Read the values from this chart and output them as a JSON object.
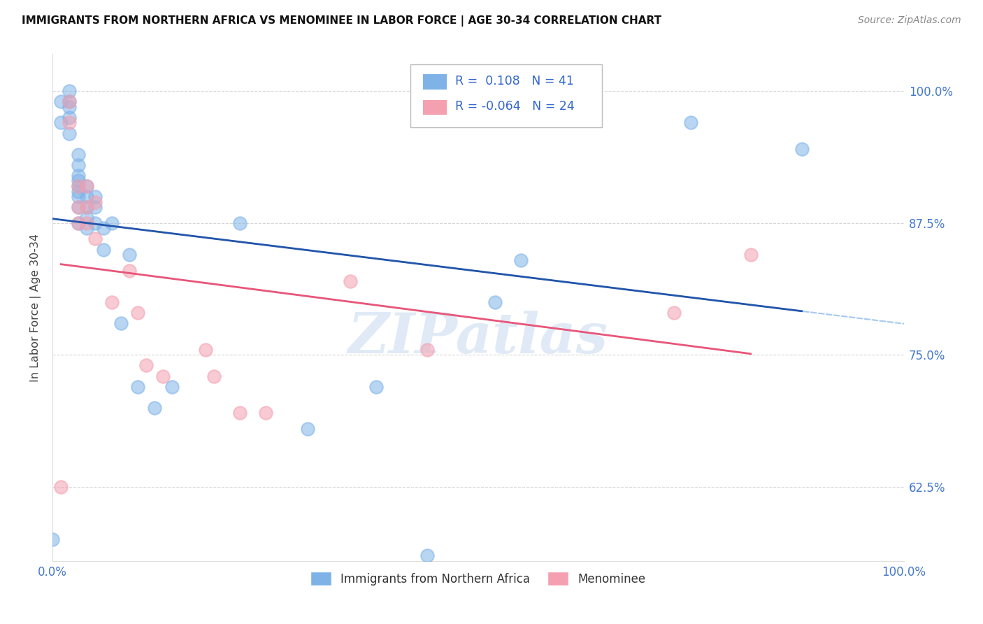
{
  "title": "IMMIGRANTS FROM NORTHERN AFRICA VS MENOMINEE IN LABOR FORCE | AGE 30-34 CORRELATION CHART",
  "source": "Source: ZipAtlas.com",
  "ylabel": "In Labor Force | Age 30-34",
  "xlim": [
    0.0,
    1.0
  ],
  "ylim": [
    0.555,
    1.035
  ],
  "ytick_positions": [
    0.625,
    0.75,
    0.875,
    1.0
  ],
  "ytick_labels": [
    "62.5%",
    "75.0%",
    "87.5%",
    "100.0%"
  ],
  "legend_label1": "Immigrants from Northern Africa",
  "legend_label2": "Menominee",
  "R1": 0.108,
  "N1": 41,
  "R2": -0.064,
  "N2": 24,
  "blue_color": "#7fb3e8",
  "pink_color": "#f4a0b0",
  "blue_line_color": "#2255aa",
  "pink_line_color": "#e8557a",
  "blue_scatter_x": [
    0.0,
    0.01,
    0.01,
    0.02,
    0.02,
    0.02,
    0.02,
    0.02,
    0.03,
    0.03,
    0.03,
    0.03,
    0.03,
    0.03,
    0.03,
    0.03,
    0.03,
    0.04,
    0.04,
    0.04,
    0.04,
    0.04,
    0.05,
    0.05,
    0.05,
    0.06,
    0.06,
    0.07,
    0.08,
    0.09,
    0.1,
    0.12,
    0.14,
    0.22,
    0.3,
    0.38,
    0.44,
    0.52,
    0.55,
    0.75,
    0.88
  ],
  "blue_scatter_y": [
    0.575,
    0.97,
    0.99,
    0.96,
    0.975,
    0.985,
    0.99,
    1.0,
    0.875,
    0.89,
    0.9,
    0.905,
    0.91,
    0.915,
    0.92,
    0.93,
    0.94,
    0.87,
    0.88,
    0.89,
    0.9,
    0.91,
    0.875,
    0.89,
    0.9,
    0.85,
    0.87,
    0.875,
    0.78,
    0.845,
    0.72,
    0.7,
    0.72,
    0.875,
    0.68,
    0.72,
    0.56,
    0.8,
    0.84,
    0.97,
    0.945
  ],
  "pink_scatter_x": [
    0.01,
    0.02,
    0.02,
    0.03,
    0.03,
    0.03,
    0.04,
    0.04,
    0.04,
    0.05,
    0.05,
    0.07,
    0.09,
    0.1,
    0.11,
    0.13,
    0.18,
    0.19,
    0.22,
    0.25,
    0.35,
    0.44,
    0.73,
    0.82
  ],
  "pink_scatter_y": [
    0.625,
    0.97,
    0.99,
    0.875,
    0.89,
    0.91,
    0.875,
    0.89,
    0.91,
    0.86,
    0.895,
    0.8,
    0.83,
    0.79,
    0.74,
    0.73,
    0.755,
    0.73,
    0.695,
    0.695,
    0.82,
    0.755,
    0.79,
    0.845
  ]
}
